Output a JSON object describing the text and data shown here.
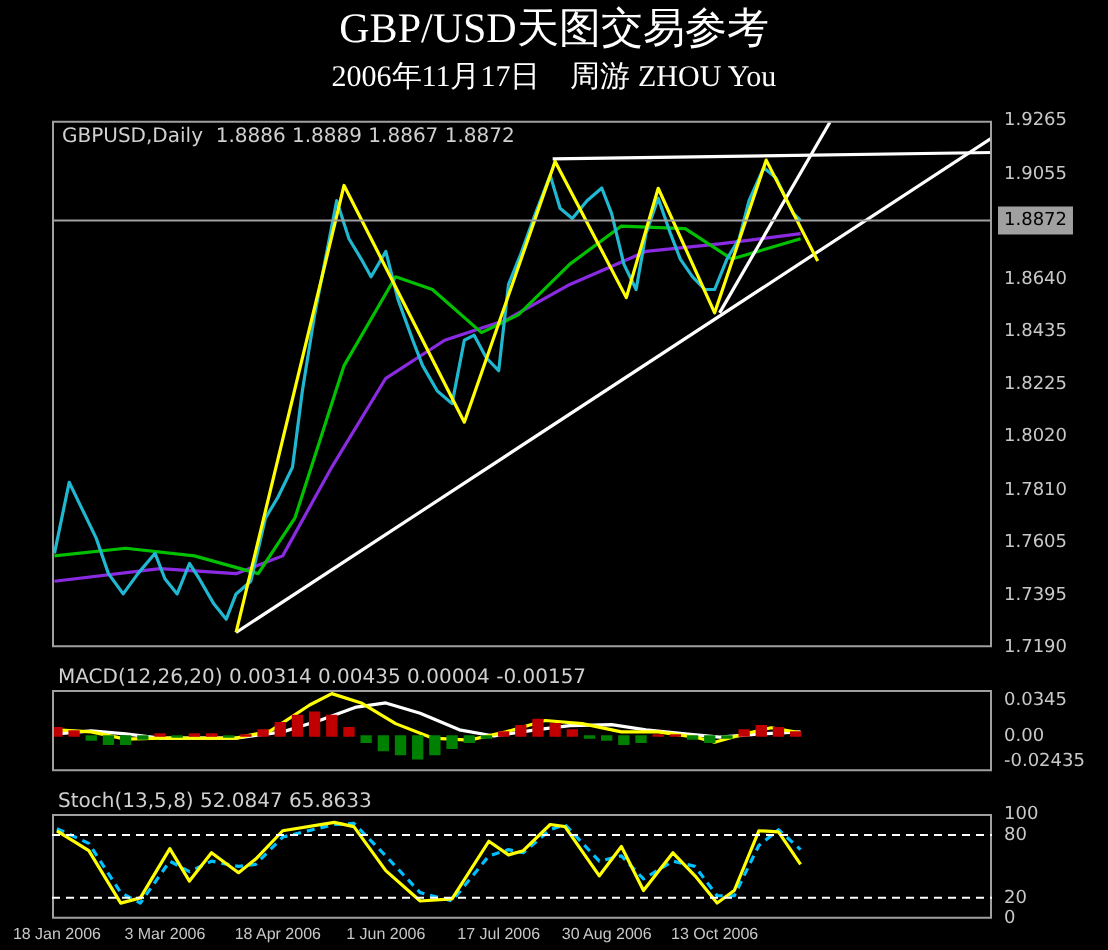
{
  "chart_data": [
    {
      "type": "line",
      "title": "GBP/USD天图交易参考",
      "subtitle": "2006年11月17日　周游 ZHOU You",
      "annotations": [
        "GBPUSD,Daily  1.8886 1.8889 1.8867 1.8872"
      ],
      "xlim": [
        "2006-01-16",
        "2007-02-03"
      ],
      "ylim": [
        1.719,
        1.9265
      ],
      "yticks": [
        1.9265,
        1.9055,
        {
          "value": 1.864,
          "label": "1.8640"
        },
        {
          "value": 1.8435,
          "label": "1.8435"
        },
        1.8225,
        {
          "value": 1.802,
          "label": "1.8020"
        },
        {
          "value": 1.781,
          "label": "1.7810"
        },
        1.7605,
        1.7395,
        {
          "value": 1.719,
          "label": "1.7190"
        }
      ],
      "tick_labels": "y",
      "marker": "none",
      "ref_lines": [
        {
          "axis": "y",
          "value": 1.8872,
          "label": "1.8872",
          "color": "#a0a0a0"
        }
      ],
      "series": [
        {
          "color": "#ffff00",
          "x": [
            "2006-04-01",
            "2006-05-15",
            "2006-07-03",
            "2006-08-09",
            "2006-09-07",
            "2006-09-20",
            "2006-10-13",
            "2006-11-03",
            "2006-11-24"
          ],
          "values": [
            1.7248,
            1.901,
            1.8077,
            1.9105,
            1.8568,
            1.8999,
            1.8508,
            1.911,
            1.8712
          ]
        },
        {
          "color": "#ffffff",
          "x": [
            "2006-04-01",
            "2007-02-03"
          ],
          "values": [
            1.7248,
            1.9198
          ]
        },
        {
          "color": "#ffffff",
          "x": [
            "2006-10-15",
            "2006-11-29"
          ],
          "values": [
            1.8508,
            1.926
          ]
        },
        {
          "color": "#ffffff",
          "x": [
            "2006-08-08",
            "2007-02-03"
          ],
          "values": [
            1.9115,
            1.914
          ]
        },
        {
          "color": "#20b8d0",
          "x": [
            "2006-01-17",
            "2006-01-23",
            "2006-01-27",
            "2006-02-03",
            "2006-02-08",
            "2006-02-14",
            "2006-02-20",
            "2006-02-27",
            "2006-03-03",
            "2006-03-08",
            "2006-03-13",
            "2006-03-17",
            "2006-03-23",
            "2006-03-28",
            "2006-04-01",
            "2006-04-07",
            "2006-04-13",
            "2006-04-18",
            "2006-04-24",
            "2006-04-28",
            "2006-05-03",
            "2006-05-08",
            "2006-05-12",
            "2006-05-17",
            "2006-05-22",
            "2006-05-26",
            "2006-06-01",
            "2006-06-06",
            "2006-06-12",
            "2006-06-16",
            "2006-06-22",
            "2006-06-28",
            "2006-07-03",
            "2006-07-07",
            "2006-07-12",
            "2006-07-17",
            "2006-07-21",
            "2006-07-26",
            "2006-08-01",
            "2006-08-07",
            "2006-08-11",
            "2006-08-16",
            "2006-08-22",
            "2006-08-28",
            "2006-09-01",
            "2006-09-06",
            "2006-09-11",
            "2006-09-15",
            "2006-09-20",
            "2006-09-25",
            "2006-09-29",
            "2006-10-04",
            "2006-10-09",
            "2006-10-13",
            "2006-10-18",
            "2006-10-23",
            "2006-10-27",
            "2006-11-02",
            "2006-11-07",
            "2006-11-10",
            "2006-11-14",
            "2006-11-17"
          ],
          "values": [
            1.756,
            1.784,
            1.776,
            1.762,
            1.748,
            1.74,
            1.748,
            1.756,
            1.746,
            1.74,
            1.752,
            1.746,
            1.736,
            1.73,
            1.74,
            1.745,
            1.77,
            1.778,
            1.79,
            1.82,
            1.85,
            1.875,
            1.895,
            1.88,
            1.872,
            1.865,
            1.875,
            1.856,
            1.84,
            1.83,
            1.82,
            1.815,
            1.84,
            1.842,
            1.833,
            1.828,
            1.862,
            1.874,
            1.89,
            1.905,
            1.892,
            1.888,
            1.895,
            1.9,
            1.89,
            1.87,
            1.86,
            1.882,
            1.896,
            1.882,
            1.872,
            1.865,
            1.86,
            1.86,
            1.872,
            1.88,
            1.895,
            1.908,
            1.904,
            1.898,
            1.89,
            1.8872
          ]
        },
        {
          "color": "#00c000",
          "x": [
            "2006-01-17",
            "2006-02-15",
            "2006-03-15",
            "2006-04-10",
            "2006-04-25",
            "2006-05-15",
            "2006-06-05",
            "2006-06-20",
            "2006-07-10",
            "2006-07-25",
            "2006-08-15",
            "2006-09-05",
            "2006-10-01",
            "2006-10-20",
            "2006-11-17"
          ],
          "values": [
            1.755,
            1.758,
            1.755,
            1.748,
            1.77,
            1.83,
            1.865,
            1.86,
            1.843,
            1.85,
            1.87,
            1.885,
            1.884,
            1.872,
            1.88
          ]
        },
        {
          "color": "#8a2be2",
          "x": [
            "2006-01-17",
            "2006-03-01",
            "2006-04-01",
            "2006-04-20",
            "2006-05-10",
            "2006-06-01",
            "2006-06-25",
            "2006-07-20",
            "2006-08-15",
            "2006-09-15",
            "2006-10-15",
            "2006-11-17"
          ],
          "values": [
            1.745,
            1.75,
            1.748,
            1.755,
            1.79,
            1.825,
            1.84,
            1.848,
            1.862,
            1.875,
            1.878,
            1.882
          ]
        }
      ]
    },
    {
      "type": "bar",
      "title": "MACD(12,26,20) 0.00314 0.00435 0.00004 -0.00157",
      "xlim": [
        "2006-01-16",
        "2007-02-03"
      ],
      "ylim": [
        -0.034,
        0.0445
      ],
      "yticks": [
        0.0345,
        {
          "value": 0,
          "label": "0.00"
        },
        -0.02435
      ],
      "tick_labels": "y",
      "marker": "none",
      "series": [
        {
          "type": "line",
          "color": "#ffff00",
          "x": [
            "2006-01-18",
            "2006-02-01",
            "2006-02-15",
            "2006-03-01",
            "2006-03-15",
            "2006-04-01",
            "2006-04-15",
            "2006-05-01",
            "2006-05-10",
            "2006-05-22",
            "2006-06-05",
            "2006-06-20",
            "2006-07-05",
            "2006-07-20",
            "2006-08-05",
            "2006-08-20",
            "2006-09-05",
            "2006-09-20",
            "2006-10-05",
            "2006-10-13",
            "2006-10-25",
            "2006-11-05",
            "2006-11-17"
          ],
          "values": [
            0.006,
            0.004,
            -0.003,
            -0.002,
            -0.002,
            -0.002,
            0.005,
            0.03,
            0.041,
            0.032,
            0.012,
            -0.002,
            -0.004,
            0.004,
            0.015,
            0.012,
            0.004,
            0.004,
            -0.001,
            -0.006,
            0.002,
            0.008,
            0.003
          ]
        },
        {
          "type": "line",
          "color": "#ffffff",
          "x": [
            "2006-01-18",
            "2006-02-01",
            "2006-02-15",
            "2006-03-01",
            "2006-04-01",
            "2006-04-20",
            "2006-05-05",
            "2006-05-20",
            "2006-06-01",
            "2006-06-15",
            "2006-07-01",
            "2006-07-15",
            "2006-08-01",
            "2006-08-15",
            "2006-09-01",
            "2006-09-15",
            "2006-10-01",
            "2006-10-15",
            "2006-11-01",
            "2006-11-17"
          ],
          "values": [
            0.002,
            0.005,
            0.002,
            -0.002,
            -0.002,
            0.004,
            0.015,
            0.028,
            0.032,
            0.022,
            0.006,
            0,
            0.006,
            0.01,
            0.011,
            0.006,
            0.002,
            -0.001,
            0.002,
            0.004
          ]
        },
        {
          "type": "bar",
          "x": [
            "2006-01-18",
            "2006-01-25",
            "2006-02-01",
            "2006-02-08",
            "2006-02-15",
            "2006-02-22",
            "2006-03-01",
            "2006-03-08",
            "2006-03-15",
            "2006-03-22",
            "2006-03-29",
            "2006-04-05",
            "2006-04-12",
            "2006-04-19",
            "2006-04-26",
            "2006-05-03",
            "2006-05-10",
            "2006-05-17",
            "2006-05-24",
            "2006-05-31",
            "2006-06-07",
            "2006-06-14",
            "2006-06-21",
            "2006-06-28",
            "2006-07-05",
            "2006-07-12",
            "2006-07-19",
            "2006-07-26",
            "2006-08-02",
            "2006-08-09",
            "2006-08-16",
            "2006-08-23",
            "2006-08-30",
            "2006-09-06",
            "2006-09-13",
            "2006-09-20",
            "2006-09-27",
            "2006-10-04",
            "2006-10-11",
            "2006-10-18",
            "2006-10-25",
            "2006-11-01",
            "2006-11-08",
            "2006-11-15"
          ],
          "values": [
            0.008,
            0.005,
            -0.004,
            -0.008,
            -0.008,
            -0.003,
            0.002,
            -0.001,
            0.002,
            0.002,
            -0.001,
            0.001,
            0.006,
            0.013,
            0.02,
            0.023,
            0.02,
            0.008,
            -0.006,
            -0.014,
            -0.018,
            -0.022,
            -0.018,
            -0.012,
            -0.006,
            -0.002,
            0.004,
            0.01,
            0.016,
            0.012,
            0.006,
            -0.002,
            -0.004,
            -0.008,
            -0.006,
            0.001,
            0.001,
            -0.003,
            -0.006,
            -0.002,
            0.006,
            0.01,
            0.008,
            0.004
          ],
          "colors": [
            "#c00000",
            "#c00000",
            "#008000",
            "#008000",
            "#008000",
            "#008000",
            "#c00000",
            "#008000",
            "#c00000",
            "#c00000",
            "#008000",
            "#c00000",
            "#c00000",
            "#c00000",
            "#c00000",
            "#c00000",
            "#c00000",
            "#c00000",
            "#008000",
            "#008000",
            "#008000",
            "#008000",
            "#008000",
            "#008000",
            "#008000",
            "#008000",
            "#c00000",
            "#c00000",
            "#c00000",
            "#c00000",
            "#c00000",
            "#008000",
            "#008000",
            "#008000",
            "#008000",
            "#c00000",
            "#c00000",
            "#008000",
            "#008000",
            "#008000",
            "#c00000",
            "#c00000",
            "#c00000",
            "#c00000"
          ]
        }
      ]
    },
    {
      "type": "line",
      "title": "Stoch(13,5,8) 52.0847 65.8633",
      "xlim": [
        "2006-01-16",
        "2007-02-03"
      ],
      "xticks": [
        {
          "value": "2006-01-18",
          "label": "18 Jan 2006"
        },
        {
          "value": "2006-03-03",
          "label": "3 Mar 2006"
        },
        {
          "value": "2006-04-18",
          "label": "18 Apr 2006"
        },
        {
          "value": "2006-06-01",
          "label": "1 Jun 2006"
        },
        {
          "value": "2006-07-17",
          "label": "17 Jul 2006"
        },
        {
          "value": "2006-08-30",
          "label": "30 Aug 2006"
        },
        {
          "value": "2006-10-13",
          "label": "13 Oct 2006"
        }
      ],
      "ylim": [
        0,
        100
      ],
      "yticks": [
        100,
        80,
        20,
        0
      ],
      "marker": "none",
      "ref_lines": [
        {
          "axis": "y",
          "value": 80,
          "color": "#ffffff",
          "line_style": "dashed"
        },
        {
          "axis": "y",
          "value": 20,
          "color": "#ffffff",
          "line_style": "dashed"
        }
      ],
      "series": [
        {
          "color": "#ffff00",
          "x": [
            "2006-01-18",
            "2006-01-31",
            "2006-02-13",
            "2006-02-21",
            "2006-03-05",
            "2006-03-13",
            "2006-03-22",
            "2006-04-02",
            "2006-04-09",
            "2006-04-20",
            "2006-05-11",
            "2006-05-19",
            "2006-06-01",
            "2006-06-15",
            "2006-06-28",
            "2006-07-13",
            "2006-07-21",
            "2006-07-27",
            "2006-08-07",
            "2006-08-13",
            "2006-08-27",
            "2006-09-05",
            "2006-09-14",
            "2006-09-26",
            "2006-10-05",
            "2006-10-14",
            "2006-10-21",
            "2006-10-31",
            "2006-11-08",
            "2006-11-17"
          ],
          "values": [
            84,
            65,
            15,
            20,
            67,
            36,
            63,
            44,
            57,
            84,
            92,
            88,
            46,
            17,
            19,
            74,
            61,
            65,
            90,
            88,
            41,
            69,
            27,
            63,
            41,
            15,
            27,
            84,
            83,
            52
          ]
        },
        {
          "color": "#00bfff",
          "line_style": "dashed",
          "x": [
            "2006-01-18",
            "2006-01-31",
            "2006-02-13",
            "2006-02-21",
            "2006-03-05",
            "2006-03-13",
            "2006-03-22",
            "2006-04-02",
            "2006-04-09",
            "2006-04-20",
            "2006-05-11",
            "2006-05-19",
            "2006-06-01",
            "2006-06-15",
            "2006-06-28",
            "2006-07-13",
            "2006-07-21",
            "2006-07-27",
            "2006-08-07",
            "2006-08-13",
            "2006-08-27",
            "2006-09-05",
            "2006-09-14",
            "2006-09-26",
            "2006-10-05",
            "2006-10-14",
            "2006-10-21",
            "2006-10-31",
            "2006-11-08",
            "2006-11-17"
          ],
          "values": [
            86,
            72,
            25,
            15,
            55,
            45,
            55,
            50,
            52,
            78,
            90,
            91,
            60,
            25,
            17,
            60,
            66,
            63,
            85,
            90,
            55,
            60,
            38,
            55,
            50,
            22,
            22,
            70,
            85,
            66
          ]
        }
      ]
    }
  ]
}
